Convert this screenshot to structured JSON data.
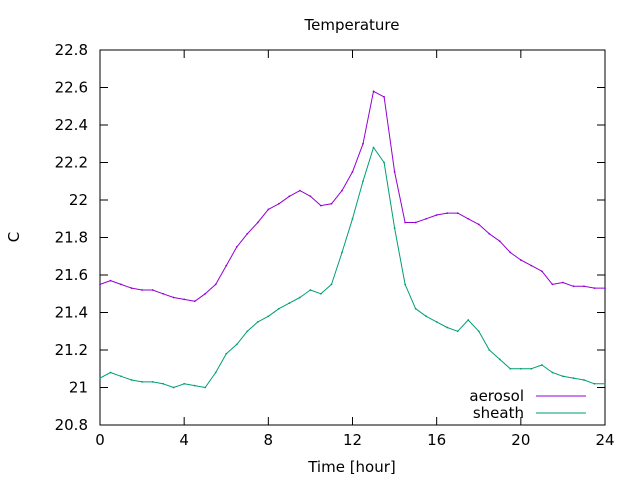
{
  "chart_data": {
    "type": "line",
    "title": "Temperature",
    "xlabel": "Time [hour]",
    "ylabel": "C",
    "xlim": [
      0,
      24
    ],
    "ylim": [
      20.8,
      22.8
    ],
    "xticks": [
      "0",
      "4",
      "8",
      "12",
      "16",
      "20",
      "24"
    ],
    "yticks": [
      "20.8",
      "21",
      "21.2",
      "21.4",
      "21.6",
      "21.8",
      "22",
      "22.2",
      "22.4",
      "22.6",
      "22.8"
    ],
    "grid": false,
    "legend_position": "bottom-right",
    "series": [
      {
        "name": "aerosol",
        "color": "#9400d3",
        "x": [
          0,
          0.5,
          1,
          1.5,
          2,
          2.5,
          3,
          3.5,
          4,
          4.5,
          5,
          5.5,
          6,
          6.5,
          7,
          7.5,
          8,
          8.5,
          9,
          9.5,
          10,
          10.5,
          11,
          11.5,
          12,
          12.5,
          13,
          13.5,
          14,
          14.5,
          15,
          15.5,
          16,
          16.5,
          17,
          17.5,
          18,
          18.5,
          19,
          19.5,
          20,
          20.5,
          21,
          21.5,
          22,
          22.5,
          23,
          23.5,
          24
        ],
        "values": [
          21.55,
          21.57,
          21.55,
          21.53,
          21.52,
          21.52,
          21.5,
          21.48,
          21.47,
          21.46,
          21.5,
          21.55,
          21.65,
          21.75,
          21.82,
          21.88,
          21.95,
          21.98,
          22.02,
          22.05,
          22.02,
          21.97,
          21.98,
          22.05,
          22.15,
          22.3,
          22.58,
          22.55,
          22.15,
          21.88,
          21.88,
          21.9,
          21.92,
          21.93,
          21.93,
          21.9,
          21.87,
          21.82,
          21.78,
          21.72,
          21.68,
          21.65,
          21.62,
          21.55,
          21.56,
          21.54,
          21.54,
          21.53,
          21.53
        ]
      },
      {
        "name": "sheath",
        "color": "#009e73",
        "x": [
          0,
          0.5,
          1,
          1.5,
          2,
          2.5,
          3,
          3.5,
          4,
          4.5,
          5,
          5.5,
          6,
          6.5,
          7,
          7.5,
          8,
          8.5,
          9,
          9.5,
          10,
          10.5,
          11,
          11.5,
          12,
          12.5,
          13,
          13.5,
          14,
          14.5,
          15,
          15.5,
          16,
          16.5,
          17,
          17.5,
          18,
          18.5,
          19,
          19.5,
          20,
          20.5,
          21,
          21.5,
          22,
          22.5,
          23,
          23.5,
          24
        ],
        "values": [
          21.05,
          21.08,
          21.06,
          21.04,
          21.03,
          21.03,
          21.02,
          21.0,
          21.02,
          21.01,
          21.0,
          21.08,
          21.18,
          21.23,
          21.3,
          21.35,
          21.38,
          21.42,
          21.45,
          21.48,
          21.52,
          21.5,
          21.55,
          21.72,
          21.9,
          22.1,
          22.28,
          22.2,
          21.85,
          21.55,
          21.42,
          21.38,
          21.35,
          21.32,
          21.3,
          21.36,
          21.3,
          21.2,
          21.15,
          21.1,
          21.1,
          21.1,
          21.12,
          21.08,
          21.06,
          21.05,
          21.04,
          21.02,
          21.02
        ]
      }
    ]
  }
}
